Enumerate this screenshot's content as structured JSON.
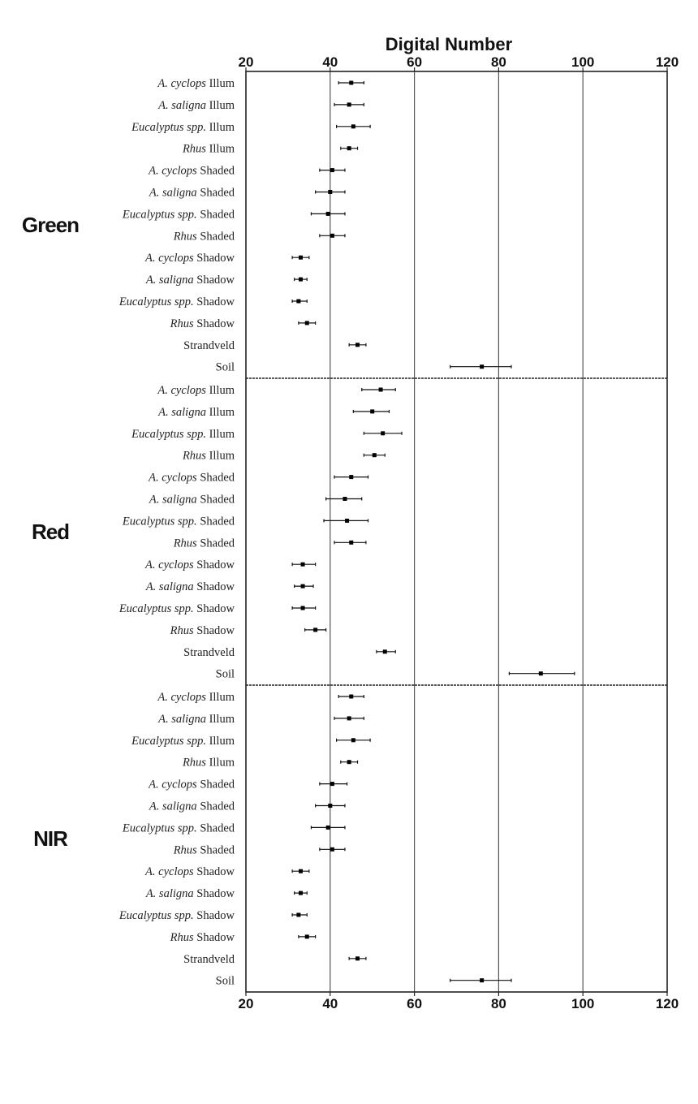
{
  "chart_data": {
    "type": "errorbar",
    "title": "Digital Number",
    "xlim": [
      20,
      120
    ],
    "xticks": [
      20,
      40,
      60,
      80,
      100,
      120
    ],
    "reference_lines": [
      40,
      60,
      80,
      100
    ],
    "panels": [
      {
        "band": "Green",
        "categories": [
          {
            "species": "A. cyclops",
            "label": "Illum",
            "mean": 45,
            "low": 42,
            "high": 48
          },
          {
            "species": "A. saligna",
            "label": "Illum",
            "mean": 44.5,
            "low": 41,
            "high": 48
          },
          {
            "species": "Eucalyptus spp.",
            "label": "Illum",
            "mean": 45.5,
            "low": 41.5,
            "high": 49.5
          },
          {
            "species": "Rhus",
            "label": "Illum",
            "mean": 44.5,
            "low": 42.5,
            "high": 46.5
          },
          {
            "species": "A. cyclops",
            "label": "Shaded",
            "mean": 40.5,
            "low": 37.5,
            "high": 43.5
          },
          {
            "species": "A. saligna",
            "label": "Shaded",
            "mean": 40,
            "low": 36.5,
            "high": 43.5
          },
          {
            "species": "Eucalyptus spp.",
            "label": "Shaded",
            "mean": 39.5,
            "low": 35.5,
            "high": 43.5
          },
          {
            "species": "Rhus",
            "label": "Shaded",
            "mean": 40.5,
            "low": 37.5,
            "high": 43.5
          },
          {
            "species": "A. cyclops",
            "label": "Shadow",
            "mean": 33,
            "low": 31,
            "high": 35
          },
          {
            "species": "A. saligna",
            "label": "Shadow",
            "mean": 33,
            "low": 31.5,
            "high": 34.5
          },
          {
            "species": "Eucalyptus spp.",
            "label": "Shadow",
            "mean": 32.5,
            "low": 31,
            "high": 34.5
          },
          {
            "species": "Rhus",
            "label": "Shadow",
            "mean": 34.5,
            "low": 32.5,
            "high": 36.5
          },
          {
            "species": "",
            "label": "Strandveld",
            "mean": 46.5,
            "low": 44.5,
            "high": 48.5
          },
          {
            "species": "",
            "label": "Soil",
            "mean": 76,
            "low": 68.5,
            "high": 83
          }
        ]
      },
      {
        "band": "Red",
        "categories": [
          {
            "species": "A. cyclops",
            "label": "Illum",
            "mean": 52,
            "low": 47.5,
            "high": 55.5
          },
          {
            "species": "A. saligna",
            "label": "Illum",
            "mean": 50,
            "low": 45.5,
            "high": 54
          },
          {
            "species": "Eucalyptus spp.",
            "label": "Illum",
            "mean": 52.5,
            "low": 48,
            "high": 57
          },
          {
            "species": "Rhus",
            "label": "Illum",
            "mean": 50.5,
            "low": 48,
            "high": 53
          },
          {
            "species": "A. cyclops",
            "label": "Shaded",
            "mean": 45,
            "low": 41,
            "high": 49
          },
          {
            "species": "A. saligna",
            "label": "Shaded",
            "mean": 43.5,
            "low": 39,
            "high": 47.5
          },
          {
            "species": "Eucalyptus spp.",
            "label": "Shaded",
            "mean": 44,
            "low": 38.5,
            "high": 49
          },
          {
            "species": "Rhus",
            "label": "Shaded",
            "mean": 45,
            "low": 41,
            "high": 48.5
          },
          {
            "species": "A. cyclops",
            "label": "Shadow",
            "mean": 33.5,
            "low": 31,
            "high": 36.5
          },
          {
            "species": "A. saligna",
            "label": "Shadow",
            "mean": 33.5,
            "low": 31.5,
            "high": 36
          },
          {
            "species": "Eucalyptus spp.",
            "label": "Shadow",
            "mean": 33.5,
            "low": 31,
            "high": 36.5
          },
          {
            "species": "Rhus",
            "label": "Shadow",
            "mean": 36.5,
            "low": 34,
            "high": 39
          },
          {
            "species": "",
            "label": "Strandveld",
            "mean": 53,
            "low": 51,
            "high": 55.5
          },
          {
            "species": "",
            "label": "Soil",
            "mean": 90,
            "low": 82.5,
            "high": 98
          }
        ]
      },
      {
        "band": "NIR",
        "categories": [
          {
            "species": "A. cyclops",
            "label": "Illum",
            "mean": 45,
            "low": 42,
            "high": 48
          },
          {
            "species": "A. saligna",
            "label": "Illum",
            "mean": 44.5,
            "low": 41,
            "high": 48
          },
          {
            "species": "Eucalyptus spp.",
            "label": "Illum",
            "mean": 45.5,
            "low": 41.5,
            "high": 49.5
          },
          {
            "species": "Rhus",
            "label": "Illum",
            "mean": 44.5,
            "low": 42.5,
            "high": 46.5
          },
          {
            "species": "A. cyclops",
            "label": "Shaded",
            "mean": 40.5,
            "low": 37.5,
            "high": 44
          },
          {
            "species": "A. saligna",
            "label": "Shaded",
            "mean": 40,
            "low": 36.5,
            "high": 43.5
          },
          {
            "species": "Eucalyptus spp.",
            "label": "Shaded",
            "mean": 39.5,
            "low": 35.5,
            "high": 43.5
          },
          {
            "species": "Rhus",
            "label": "Shaded",
            "mean": 40.5,
            "low": 37.5,
            "high": 43.5
          },
          {
            "species": "A. cyclops",
            "label": "Shadow",
            "mean": 33,
            "low": 31,
            "high": 35
          },
          {
            "species": "A. saligna",
            "label": "Shadow",
            "mean": 33,
            "low": 31.5,
            "high": 34.5
          },
          {
            "species": "Eucalyptus spp.",
            "label": "Shadow",
            "mean": 32.5,
            "low": 31,
            "high": 34.5
          },
          {
            "species": "Rhus",
            "label": "Shadow",
            "mean": 34.5,
            "low": 32.5,
            "high": 36.5
          },
          {
            "species": "",
            "label": "Strandveld",
            "mean": 46.5,
            "low": 44.5,
            "high": 48.5
          },
          {
            "species": "",
            "label": "Soil",
            "mean": 76,
            "low": 68.5,
            "high": 83
          }
        ]
      }
    ]
  }
}
